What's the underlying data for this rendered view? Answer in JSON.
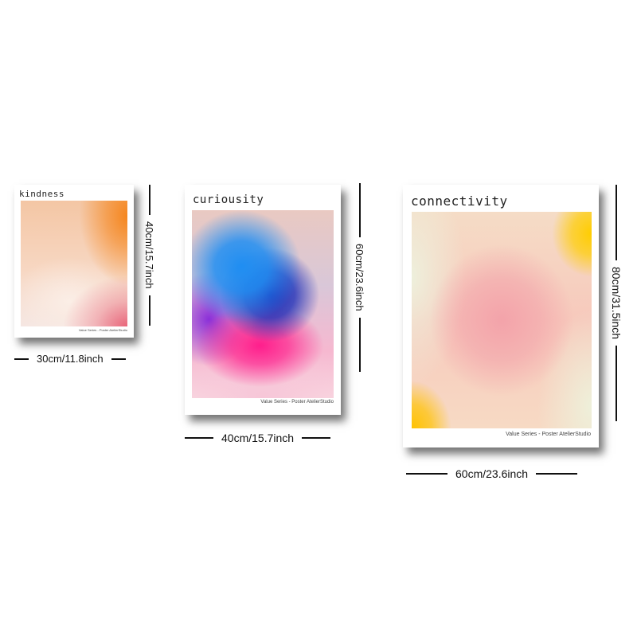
{
  "posters": [
    {
      "title": "kindness",
      "caption": "Value Series - Poster AtelierStudio",
      "width_label": "30cm/11.8inch",
      "height_label": "40cm/15.7inch"
    },
    {
      "title": "curiousity",
      "caption": "Value Series - Poster AtelierStudio",
      "width_label": "40cm/15.7inch",
      "height_label": "60cm/23.6inch"
    },
    {
      "title": "connectivity",
      "caption": "Value Series - Poster AtelierStudio",
      "width_label": "60cm/23.6inch",
      "height_label": "80cm/31.5inch"
    }
  ]
}
